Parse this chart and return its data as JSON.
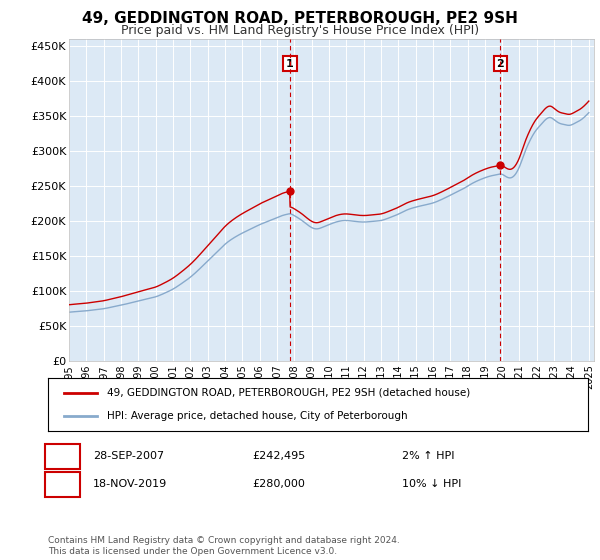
{
  "title": "49, GEDDINGTON ROAD, PETERBOROUGH, PE2 9SH",
  "subtitle": "Price paid vs. HM Land Registry's House Price Index (HPI)",
  "ylim": [
    0,
    460000
  ],
  "yticks": [
    0,
    50000,
    100000,
    150000,
    200000,
    250000,
    300000,
    350000,
    400000,
    450000
  ],
  "xlim_left": 1995,
  "xlim_right": 2025.3,
  "plot_bg": "#dce9f5",
  "legend_label_red": "49, GEDDINGTON ROAD, PETERBOROUGH, PE2 9SH (detached house)",
  "legend_label_blue": "HPI: Average price, detached house, City of Peterborough",
  "transaction1_date": "28-SEP-2007",
  "transaction1_price": "£242,495",
  "transaction1_hpi": "2% ↑ HPI",
  "transaction1_x": 2007.75,
  "transaction1_y": 242495,
  "transaction2_date": "18-NOV-2019",
  "transaction2_price": "£280,000",
  "transaction2_hpi": "10% ↓ HPI",
  "transaction2_x": 2019.9,
  "transaction2_y": 280000,
  "footnote": "Contains HM Land Registry data © Crown copyright and database right 2024.\nThis data is licensed under the Open Government Licence v3.0.",
  "color_red": "#cc0000",
  "color_blue": "#88aacc",
  "color_grid": "#ffffff",
  "title_fontsize": 11,
  "subtitle_fontsize": 9
}
